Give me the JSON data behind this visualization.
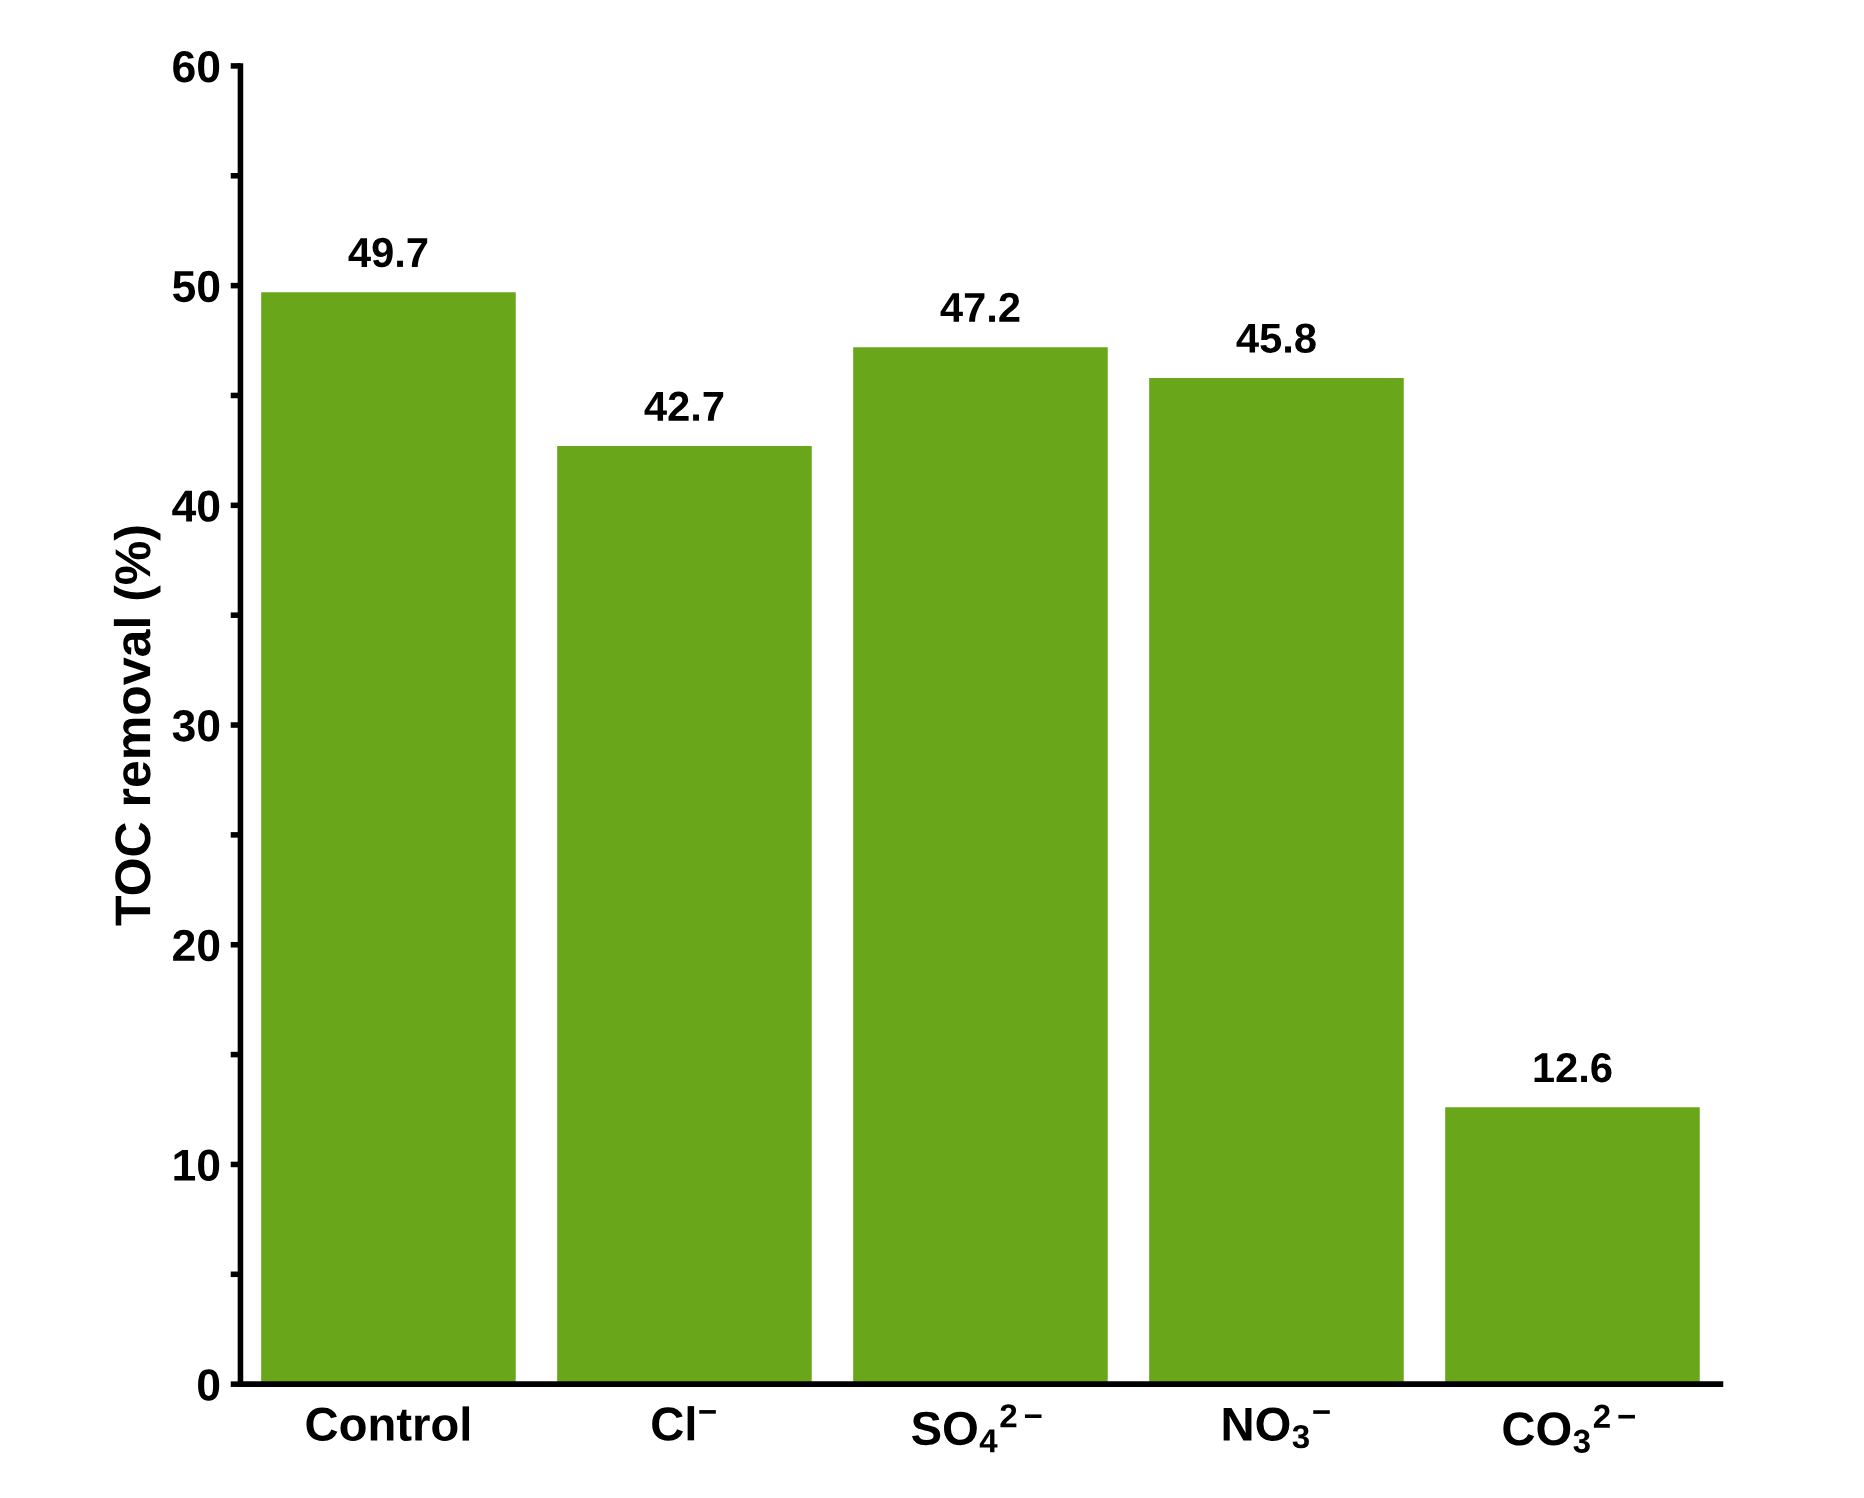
{
  "chart_data": {
    "type": "bar",
    "ylabel": "TOC removal (%)",
    "categories": [
      "Control",
      "Cl$^{−}$",
      "SO$_{4}$$^{2−}$",
      "NO$_{3}$$^{−}$",
      "CO$_{3}$$^{2−}$"
    ],
    "values": [
      49.7,
      42.7,
      47.2,
      45.8,
      12.6
    ],
    "color": "#6aa619",
    "ylim": [
      0,
      60
    ],
    "yticks": [
      0,
      {
        "value": 5,
        "label": null
      },
      10,
      {
        "value": 15,
        "label": null
      },
      20,
      {
        "value": 25,
        "label": null
      },
      30,
      {
        "value": 35,
        "label": null
      },
      40,
      {
        "value": 45,
        "label": null
      },
      50,
      {
        "value": 55,
        "label": null
      },
      60
    ],
    "data_labels": true,
    "grid": false,
    "legend": false
  }
}
